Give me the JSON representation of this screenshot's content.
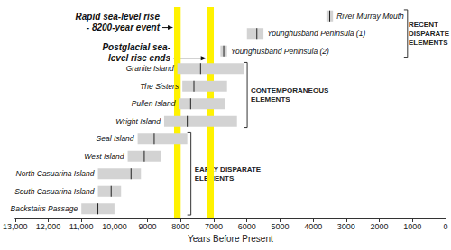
{
  "chart_data": {
    "type": "range",
    "xlabel": "Years Before Present",
    "xlim": [
      13000,
      0
    ],
    "xticks": [
      {
        "value": 13000,
        "label": "13,000"
      },
      {
        "value": 12000,
        "label": "12,000"
      },
      {
        "value": 11000,
        "label": "11,000"
      },
      {
        "value": 10000,
        "label": "10,000"
      },
      9000,
      8000,
      7000,
      6000,
      5000,
      4000,
      3000,
      2000,
      1000,
      0
    ],
    "grid": false,
    "tick_labels": "x",
    "color": "#d3d3d3",
    "categories": [
      "River Murray Mouth",
      "Younghusband Peninsula (1)",
      "Younghusband Peninsula (2)",
      "Granite Island",
      "The Sisters",
      "Pullen Island",
      "Wright Island",
      "Seal Island",
      "West Island",
      "North Casuarina Island",
      "South Casuarina Island",
      "Backstairs Passage"
    ],
    "ranges": [
      [
        3600,
        3400
      ],
      [
        6000,
        5500
      ],
      [
        6800,
        6600
      ],
      [
        8100,
        6100
      ],
      [
        7950,
        6600
      ],
      [
        8050,
        6650
      ],
      [
        8500,
        6300
      ],
      [
        9300,
        7800
      ],
      [
        9600,
        8600
      ],
      [
        10500,
        9200
      ],
      [
        10500,
        9800
      ],
      [
        11000,
        10000
      ]
    ],
    "medians": [
      3500,
      5700,
      6700,
      7400,
      7600,
      7700,
      7800,
      8800,
      9100,
      9500,
      10100,
      10500
    ],
    "events": [
      {
        "label": "Rapid sea-level rise\n- 8200-year event",
        "range": [
          8200,
          8000
        ],
        "color": "#fff200"
      },
      {
        "label": "Postglacial sea-\nlevel rise ends",
        "range": [
          7200,
          7000
        ],
        "color": "#fff200"
      }
    ],
    "groups": [
      {
        "label": "RECENT\nDISPARATE\nELEMENTS",
        "from": "River Murray Mouth",
        "to": "Younghusband Peninsula (2)"
      },
      {
        "label": "CONTEMPORANEOUS\nELEMENTS",
        "from": "Granite Island",
        "to": "Wright Island"
      },
      {
        "label": "EARLY DISPARATE\nELEMENTS",
        "from": "Seal Island",
        "to": "Backstairs Passage"
      }
    ]
  }
}
